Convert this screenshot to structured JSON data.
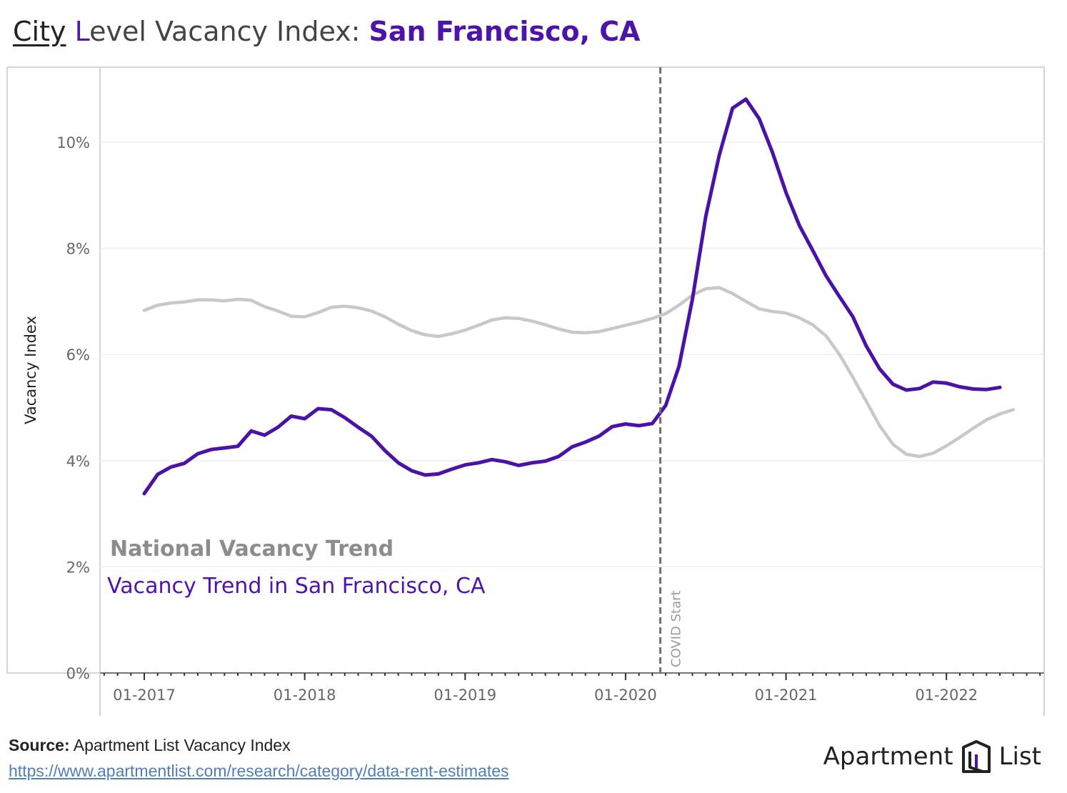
{
  "title": {
    "city_word": "City",
    "level_initial": "L",
    "level_rest": "evel Vacancy Index: ",
    "place": "San Francisco, CA"
  },
  "colors": {
    "sf_line": "#4a12a6",
    "national_line": "#c8c8c8",
    "covid_line": "#6f6f6f",
    "grid": "#eeeeee",
    "axis_text": "#666666",
    "national_label": "#8c8c8c",
    "sf_label": "#4f14ad"
  },
  "chart_data": {
    "type": "line",
    "title": "City Level Vacancy Index: San Francisco, CA",
    "xlabel": "",
    "ylabel": "Vacancy Index",
    "ylim": [
      0,
      11.5
    ],
    "grid": true,
    "x_start": "2017-01",
    "x_step": "1 month",
    "x_ticks": [
      {
        "label": "01-2017",
        "t": 0
      },
      {
        "label": "01-2018",
        "t": 12
      },
      {
        "label": "01-2019",
        "t": 24
      },
      {
        "label": "01-2020",
        "t": 36
      },
      {
        "label": "01-2021",
        "t": 48
      },
      {
        "label": "01-2022",
        "t": 60
      }
    ],
    "y_ticks": [
      {
        "label": "0%",
        "v": 0
      },
      {
        "label": "2%",
        "v": 2
      },
      {
        "label": "4%",
        "v": 4
      },
      {
        "label": "6%",
        "v": 6
      },
      {
        "label": "8%",
        "v": 8
      },
      {
        "label": "10%",
        "v": 10
      }
    ],
    "series": [
      {
        "name": "National Vacancy Trend",
        "values": [
          6.83,
          6.93,
          6.97,
          6.99,
          7.03,
          7.03,
          7.01,
          7.04,
          7.02,
          6.9,
          6.82,
          6.72,
          6.71,
          6.79,
          6.89,
          6.91,
          6.88,
          6.82,
          6.71,
          6.57,
          6.45,
          6.37,
          6.34,
          6.39,
          6.46,
          6.55,
          6.65,
          6.69,
          6.68,
          6.63,
          6.56,
          6.48,
          6.42,
          6.41,
          6.43,
          6.49,
          6.55,
          6.61,
          6.68,
          6.77,
          6.93,
          7.12,
          7.24,
          7.26,
          7.15,
          7.0,
          6.86,
          6.81,
          6.78,
          6.69,
          6.56,
          6.35,
          6.0,
          5.57,
          5.12,
          4.66,
          4.31,
          4.12,
          4.08,
          4.14,
          4.28,
          4.44,
          4.61,
          4.77,
          4.88,
          4.96
        ]
      },
      {
        "name": "Vacancy Trend in San Francisco, CA",
        "values": [
          3.38,
          3.74,
          3.88,
          3.95,
          4.13,
          4.21,
          4.24,
          4.27,
          4.56,
          4.48,
          4.63,
          4.84,
          4.79,
          4.98,
          4.96,
          4.81,
          4.63,
          4.46,
          4.19,
          3.96,
          3.81,
          3.73,
          3.75,
          3.84,
          3.92,
          3.96,
          4.02,
          3.98,
          3.91,
          3.96,
          3.99,
          4.08,
          4.26,
          4.35,
          4.46,
          4.64,
          4.69,
          4.66,
          4.7,
          5.04,
          5.78,
          7.04,
          8.6,
          9.75,
          10.64,
          10.81,
          10.44,
          9.8,
          9.05,
          8.43,
          7.96,
          7.48,
          7.09,
          6.71,
          6.16,
          5.73,
          5.44,
          5.33,
          5.36,
          5.48,
          5.46,
          5.39,
          5.35,
          5.34,
          5.38
        ]
      }
    ],
    "annotations": [
      {
        "label": "COVID Start",
        "t": 38.6,
        "style": "dashed vertical line"
      }
    ]
  },
  "legend": {
    "national": "National Vacancy Trend",
    "sf": "Vacancy Trend in San Francisco, CA"
  },
  "footer": {
    "source_label": "Source:",
    "source_text": " Apartment List Vacancy Index",
    "url": "https://www.apartmentlist.com/research/category/data-rent-estimates"
  },
  "logo": {
    "left": "Apartment",
    "right": "List"
  }
}
